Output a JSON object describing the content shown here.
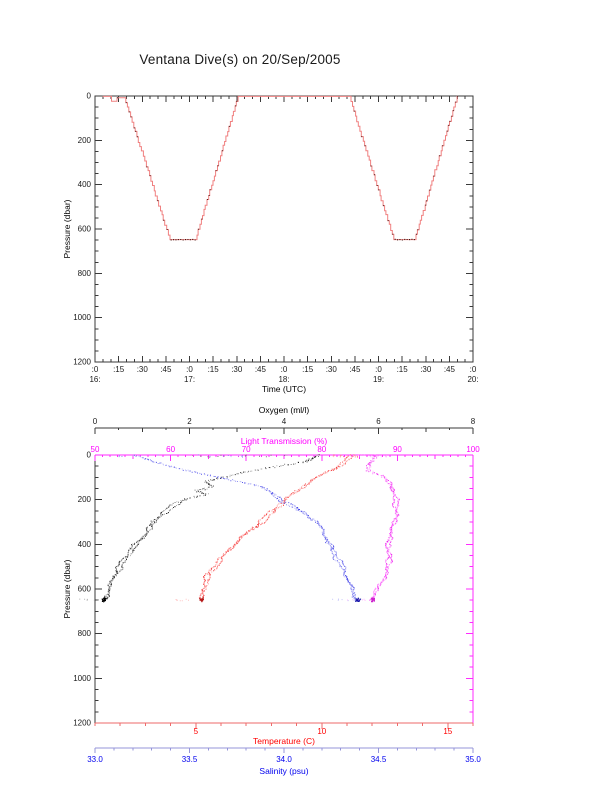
{
  "page": {
    "title": "Ventana Dive(s) on 20/Sep/2005"
  },
  "chart_data": [
    {
      "type": "line",
      "name": "dive-depth-vs-time",
      "xlabel": "Time (UTC)",
      "ylabel": "Pressure (dbar)",
      "xlim_hours": [
        16,
        20
      ],
      "ylim": [
        0,
        1200
      ],
      "y_ticks": [
        0,
        200,
        400,
        600,
        800,
        1000,
        1200
      ],
      "x_quarter_labels": [
        ":0",
        ":15",
        ":30",
        ":45"
      ],
      "x_hour_labels": [
        "16:",
        "17:",
        "18:",
        "19:",
        "20:"
      ],
      "line_color": "#f08080",
      "marker_color": "#3b1b15",
      "max_depth_dbar": 648,
      "series": [
        {
          "name": "dive-1",
          "points_time_pressure": [
            [
              16.08,
              2
            ],
            [
              16.17,
              2
            ],
            [
              16.18,
              24
            ],
            [
              16.23,
              24
            ],
            [
              16.24,
              8
            ],
            [
              16.32,
              8
            ],
            [
              16.8,
              648
            ],
            [
              17.07,
              648
            ],
            [
              17.52,
              2
            ],
            [
              18.7,
              2
            ]
          ]
        },
        {
          "name": "dive-2",
          "points_time_pressure": [
            [
              18.7,
              2
            ],
            [
              19.17,
              648
            ],
            [
              19.39,
              648
            ],
            [
              19.84,
              2
            ]
          ]
        }
      ]
    },
    {
      "type": "scatter",
      "name": "ctd-profiles-vs-pressure",
      "ylabel": "Pressure (dbar)",
      "ylim": [
        0,
        1200
      ],
      "y_ticks": [
        0,
        200,
        400,
        600,
        800,
        1000,
        1200
      ],
      "axes": [
        {
          "id": "oxygen",
          "label": "Oxygen (ml/l)",
          "color": "#000000",
          "line_color": "#3a3a3a",
          "range": [
            0,
            8
          ],
          "tick_values": [
            0,
            2,
            4,
            6,
            8
          ],
          "tick_labels": [
            "0",
            "2",
            "4",
            "6",
            "8"
          ]
        },
        {
          "id": "light",
          "label": "Light Transmission (%)",
          "color": "#ff00ff",
          "line_color": "#ff2bff",
          "range": [
            50,
            100
          ],
          "tick_values": [
            50,
            60,
            70,
            80,
            90,
            100
          ],
          "tick_labels": [
            "50",
            "60",
            "70",
            "80",
            "90",
            "100"
          ]
        },
        {
          "id": "temperature",
          "label": "Temperature (C)",
          "color": "#ff0000",
          "line_color": "#ee6a6a",
          "range": [
            1,
            16
          ],
          "tick_values": [
            5,
            10,
            15
          ],
          "tick_labels": [
            "5",
            "10",
            "15"
          ]
        },
        {
          "id": "salinity",
          "label": "Salinity (psu)",
          "color": "#0000ee",
          "line_color": "#9494da",
          "range": [
            33,
            35
          ],
          "tick_values": [
            33,
            33.5,
            34,
            34.5,
            35
          ],
          "tick_labels": [
            "33.0",
            "33.5",
            "34.0",
            "34.5",
            "35.0"
          ]
        }
      ],
      "series": [
        {
          "name": "oxygen-profile",
          "axis": "oxygen",
          "shades": [
            "#1a1a1a",
            "#6a6a6a",
            "#a8a8a8"
          ],
          "blob_color": "#000000",
          "surface_range": [
            2.0,
            5.0
          ],
          "profile_pressure_value": [
            [
              0,
              4.75
            ],
            [
              30,
              4.5
            ],
            [
              60,
              3.6
            ],
            [
              90,
              2.85
            ],
            [
              120,
              2.3
            ],
            [
              140,
              2.45
            ],
            [
              160,
              2.05
            ],
            [
              175,
              2.3
            ],
            [
              195,
              1.9
            ],
            [
              230,
              1.6
            ],
            [
              260,
              1.42
            ],
            [
              320,
              1.15
            ],
            [
              360,
              1.0
            ],
            [
              420,
              0.7
            ],
            [
              480,
              0.55
            ],
            [
              540,
              0.42
            ],
            [
              590,
              0.3
            ],
            [
              648,
              0.19
            ]
          ]
        },
        {
          "name": "temperature-profile",
          "axis": "temperature",
          "shades": [
            "#f23030",
            "#ff8080",
            "#ffbcbc"
          ],
          "blob_color": "#b51818",
          "surface_range": [
            10.4,
            11.6
          ],
          "profile_pressure_value": [
            [
              0,
              11.25
            ],
            [
              60,
              10.5
            ],
            [
              105,
              9.7
            ],
            [
              150,
              9.1
            ],
            [
              195,
              8.55
            ],
            [
              250,
              8.0
            ],
            [
              305,
              7.5
            ],
            [
              365,
              6.8
            ],
            [
              420,
              6.3
            ],
            [
              470,
              5.9
            ],
            [
              530,
              5.5
            ],
            [
              580,
              5.33
            ],
            [
              648,
              5.22
            ]
          ]
        },
        {
          "name": "salinity-profile",
          "axis": "salinity",
          "shades": [
            "#4747e8",
            "#8888f0",
            "#bcbcf8"
          ],
          "blob_color": "#1515a8",
          "surface_range": [
            33.1,
            33.8
          ],
          "profile_pressure_value": [
            [
              0,
              33.2
            ],
            [
              55,
              33.4
            ],
            [
              85,
              33.57
            ],
            [
              115,
              33.74
            ],
            [
              140,
              33.87
            ],
            [
              170,
              33.94
            ],
            [
              210,
              33.99
            ],
            [
              240,
              34.05
            ],
            [
              270,
              34.11
            ],
            [
              300,
              34.16
            ],
            [
              330,
              34.19
            ],
            [
              370,
              34.22
            ],
            [
              420,
              34.25
            ],
            [
              470,
              34.28
            ],
            [
              530,
              34.31
            ],
            [
              575,
              34.34
            ],
            [
              648,
              34.39
            ]
          ]
        },
        {
          "name": "light-transmission-profile",
          "axis": "light",
          "shades": [
            "#ee22ee",
            "#ff70ff",
            "#ffb2ff"
          ],
          "blob_color": "#cc22cc",
          "surface_range": [
            84.5,
            89.0
          ],
          "profile_pressure_value": [
            [
              0,
              86.6
            ],
            [
              40,
              86.2
            ],
            [
              70,
              86.1
            ],
            [
              100,
              88.2
            ],
            [
              130,
              89.3
            ],
            [
              200,
              89.55
            ],
            [
              260,
              89.5
            ],
            [
              330,
              89.1
            ],
            [
              400,
              88.85
            ],
            [
              470,
              88.6
            ],
            [
              520,
              88.3
            ],
            [
              575,
              87.7
            ],
            [
              615,
              87.1
            ],
            [
              648,
              86.7
            ]
          ]
        }
      ]
    }
  ]
}
